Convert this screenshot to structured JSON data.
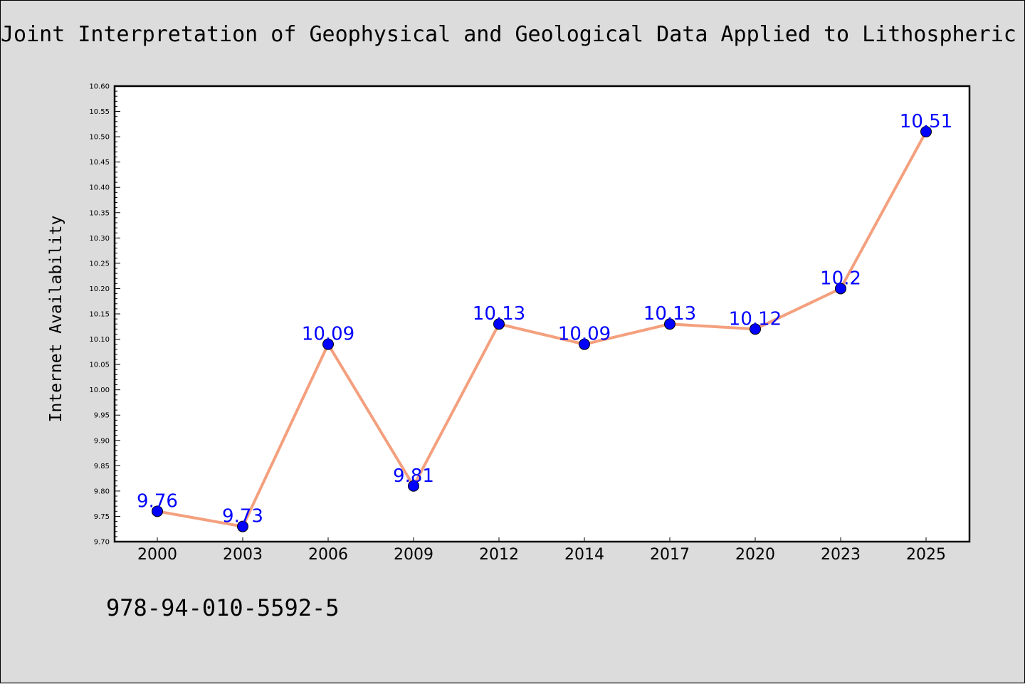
{
  "header": {
    "title": "Joint Interpretation of Geophysical and Geological Data Applied to Lithospheric"
  },
  "footer": {
    "isbn": "978-94-010-5592-5"
  },
  "chart_data": {
    "type": "line",
    "title": "Joint Interpretation of Geophysical and Geological Data Applied to Lithospheric",
    "xlabel": "",
    "ylabel": "Internet Availability",
    "categories": [
      "2000",
      "2003",
      "2006",
      "2009",
      "2012",
      "2014",
      "2017",
      "2020",
      "2023",
      "2025"
    ],
    "values": [
      9.76,
      9.73,
      10.09,
      9.81,
      10.13,
      10.09,
      10.13,
      10.12,
      10.2,
      10.51
    ],
    "data_labels": [
      "9.76",
      "9.73",
      "10.09",
      "9.81",
      "10.13",
      "10.09",
      "10.13",
      "10.12",
      "10.2",
      "10.51"
    ],
    "ylim": [
      9.7,
      10.6
    ],
    "ytick_labels": [
      "9.70",
      "9.75",
      "9.80",
      "9.85",
      "9.90",
      "9.95",
      "10.00",
      "10.05",
      "10.10",
      "10.15",
      "10.20",
      "10.25",
      "10.30",
      "10.35",
      "10.40",
      "10.45",
      "10.50",
      "10.55",
      "10.60"
    ],
    "grid": false,
    "legend": "none",
    "colors": {
      "line": "#f4a07e",
      "marker": "#0000ff",
      "data_label": "#0000ff",
      "plot_background": "#ffffff",
      "figure_background": "#dcdcdc"
    }
  }
}
